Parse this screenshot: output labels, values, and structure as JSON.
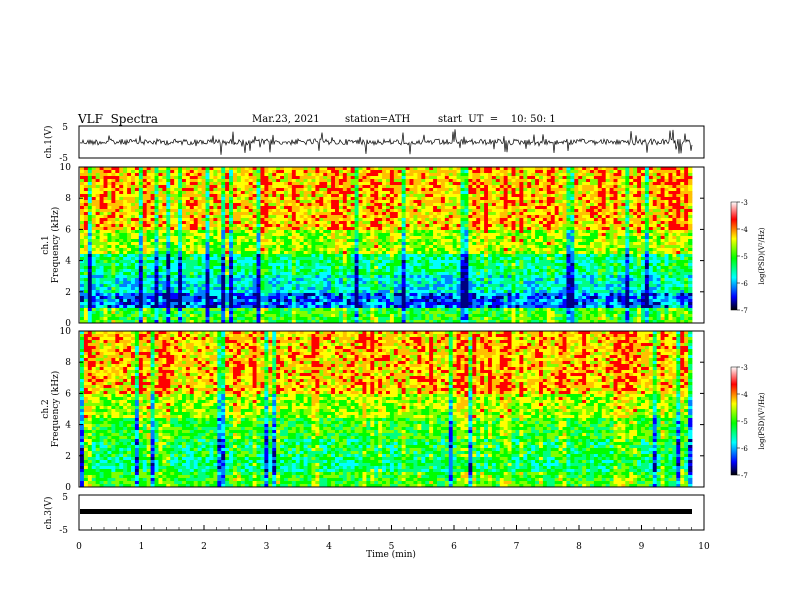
{
  "header": {
    "title": "VLF  Spectra",
    "date": "Mar.23, 2021",
    "station": "station=ATH",
    "start": "start  UT  =    10: 50: 1"
  },
  "colors": {
    "spectrum_scale": [
      "#000000",
      "#0000ff",
      "#00ffff",
      "#00ff00",
      "#ffff00",
      "#ff0000",
      "#ffffff"
    ]
  },
  "chart_data": [
    {
      "type": "line",
      "name": "waveform-ch1",
      "ylabel": "ch.1(V)",
      "ylim": [
        -5,
        5
      ],
      "yticks": [
        "5",
        "-5"
      ],
      "xlim": [
        0,
        10
      ]
    },
    {
      "type": "heatmap",
      "name": "spectrogram-ch1",
      "ylabel_line1": "ch.1",
      "ylabel_line2": "Frequency  (kHz)",
      "ylim": [
        0,
        10
      ],
      "yticks": [
        "0",
        "2",
        "4",
        "6",
        "8",
        "10"
      ],
      "xlim": [
        0,
        10
      ],
      "colorbar": {
        "label": "log(PSD)(V²/Hz)",
        "ticks": [
          "-3",
          "-4",
          "-5",
          "-6",
          "-7"
        ],
        "range": [
          -7,
          -3
        ]
      }
    },
    {
      "type": "heatmap",
      "name": "spectrogram-ch2",
      "ylabel_line1": "ch.2",
      "ylabel_line2": "Frequency  (kHz)",
      "ylim": [
        0,
        10
      ],
      "yticks": [
        "0",
        "2",
        "4",
        "6",
        "8",
        "10"
      ],
      "xlim": [
        0,
        10
      ],
      "colorbar": {
        "label": "log(PSD)(V²/Hz)",
        "ticks": [
          "-3",
          "-4",
          "-5",
          "-6",
          "-7"
        ],
        "range": [
          -7,
          -3
        ]
      }
    },
    {
      "type": "line",
      "name": "waveform-ch3",
      "ylabel": "ch.3(V)",
      "ylim": [
        -5,
        5
      ],
      "yticks": [
        "5",
        "-5"
      ],
      "xlim": [
        0,
        10
      ],
      "xlabel": "Time  (min)",
      "xticks": [
        "0",
        "1",
        "2",
        "3",
        "4",
        "5",
        "6",
        "7",
        "8",
        "9",
        "10"
      ]
    }
  ]
}
